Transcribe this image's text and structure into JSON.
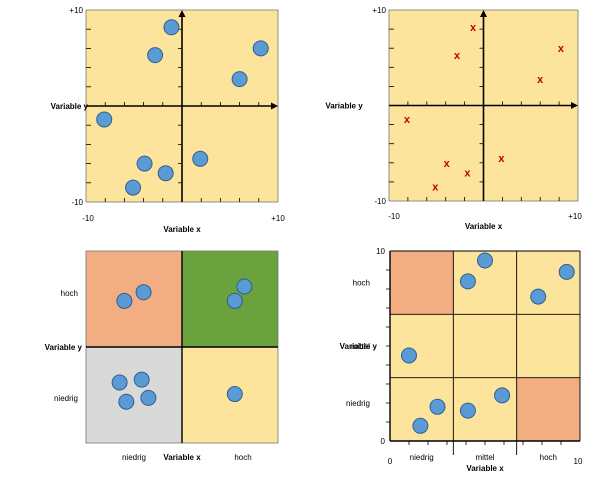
{
  "colors": {
    "bg_yellow": "#fde49c",
    "salmon": "#f3ad82",
    "green": "#6aa33e",
    "gray": "#d9d9d9",
    "dot": "#5b9bd5",
    "dot_stroke": "#2e5f8f",
    "cross": "#c00000"
  },
  "chart_data": [
    {
      "type": "scatter",
      "panel": "top-left",
      "xlabel": "Variable x",
      "ylabel": "Variable y",
      "xlim": [
        -10,
        10
      ],
      "ylim": [
        -10,
        10
      ],
      "x_tick_labels": [
        "-10",
        "+10"
      ],
      "y_tick_labels": [
        "+10",
        "-10"
      ],
      "marker": "circle",
      "points": [
        {
          "x": -1.1,
          "y": 8.2
        },
        {
          "x": -2.8,
          "y": 5.3
        },
        {
          "x": 8.2,
          "y": 6.0
        },
        {
          "x": 6.0,
          "y": 2.8
        },
        {
          "x": -8.1,
          "y": -1.4
        },
        {
          "x": 1.9,
          "y": -5.5
        },
        {
          "x": -3.9,
          "y": -6.0
        },
        {
          "x": -1.7,
          "y": -7.0
        },
        {
          "x": -5.1,
          "y": -8.5
        }
      ]
    },
    {
      "type": "scatter",
      "panel": "top-right",
      "xlabel": "Variable x",
      "ylabel": "Variable y",
      "xlim": [
        -10,
        10
      ],
      "ylim": [
        -10,
        10
      ],
      "x_tick_labels": [
        "-10",
        "+10"
      ],
      "y_tick_labels": [
        "+10",
        "-10"
      ],
      "marker": "cross",
      "marker_text": "x",
      "points": [
        {
          "x": -1.1,
          "y": 8.2
        },
        {
          "x": -2.8,
          "y": 5.3
        },
        {
          "x": 8.2,
          "y": 6.0
        },
        {
          "x": 6.0,
          "y": 2.8
        },
        {
          "x": -8.1,
          "y": -1.4
        },
        {
          "x": 1.9,
          "y": -5.5
        },
        {
          "x": -3.9,
          "y": -6.0
        },
        {
          "x": -1.7,
          "y": -7.0
        },
        {
          "x": -5.1,
          "y": -8.5
        }
      ]
    },
    {
      "type": "scatter",
      "panel": "bottom-left",
      "xlabel": "Variable x",
      "ylabel": "Variable y",
      "x_categories": [
        "niedrig",
        "hoch"
      ],
      "y_categories": [
        "hoch",
        "niedrig"
      ],
      "xlim": [
        0,
        2
      ],
      "ylim": [
        0,
        2
      ],
      "quadrant_colors": {
        "top-left": "#f3ad82",
        "top-right": "#6aa33e",
        "bottom-left": "#d9d9d9",
        "bottom-right": "#fde49c"
      },
      "marker": "circle",
      "points": [
        {
          "x": 0.4,
          "y": 1.48
        },
        {
          "x": 0.6,
          "y": 1.57
        },
        {
          "x": 1.55,
          "y": 1.48
        },
        {
          "x": 1.65,
          "y": 1.63
        },
        {
          "x": 0.35,
          "y": 0.63
        },
        {
          "x": 0.58,
          "y": 0.66
        },
        {
          "x": 0.42,
          "y": 0.43
        },
        {
          "x": 0.65,
          "y": 0.47
        },
        {
          "x": 1.55,
          "y": 0.51
        }
      ]
    },
    {
      "type": "scatter",
      "panel": "bottom-right",
      "xlabel": "Variable x",
      "ylabel": "Variable y",
      "x_categories": [
        "niedrig",
        "mittel",
        "hoch"
      ],
      "y_categories": [
        "hoch",
        "mittel",
        "niedrig"
      ],
      "x_tick_labels": [
        "0",
        "10"
      ],
      "y_tick_labels": [
        "10",
        "0"
      ],
      "xlim": [
        0,
        10
      ],
      "ylim": [
        0,
        10
      ],
      "highlight_cells": [
        {
          "col": 0,
          "row": 2,
          "color": "#f3ad82"
        },
        {
          "col": 2,
          "row": 0,
          "color": "#f3ad82"
        }
      ],
      "marker": "circle",
      "points": [
        {
          "x": 5.0,
          "y": 9.5
        },
        {
          "x": 4.1,
          "y": 8.4
        },
        {
          "x": 9.3,
          "y": 8.9
        },
        {
          "x": 7.8,
          "y": 7.6
        },
        {
          "x": 1.0,
          "y": 4.5
        },
        {
          "x": 2.5,
          "y": 1.8
        },
        {
          "x": 4.1,
          "y": 1.6
        },
        {
          "x": 5.9,
          "y": 2.4
        },
        {
          "x": 1.6,
          "y": 0.8
        }
      ]
    }
  ]
}
